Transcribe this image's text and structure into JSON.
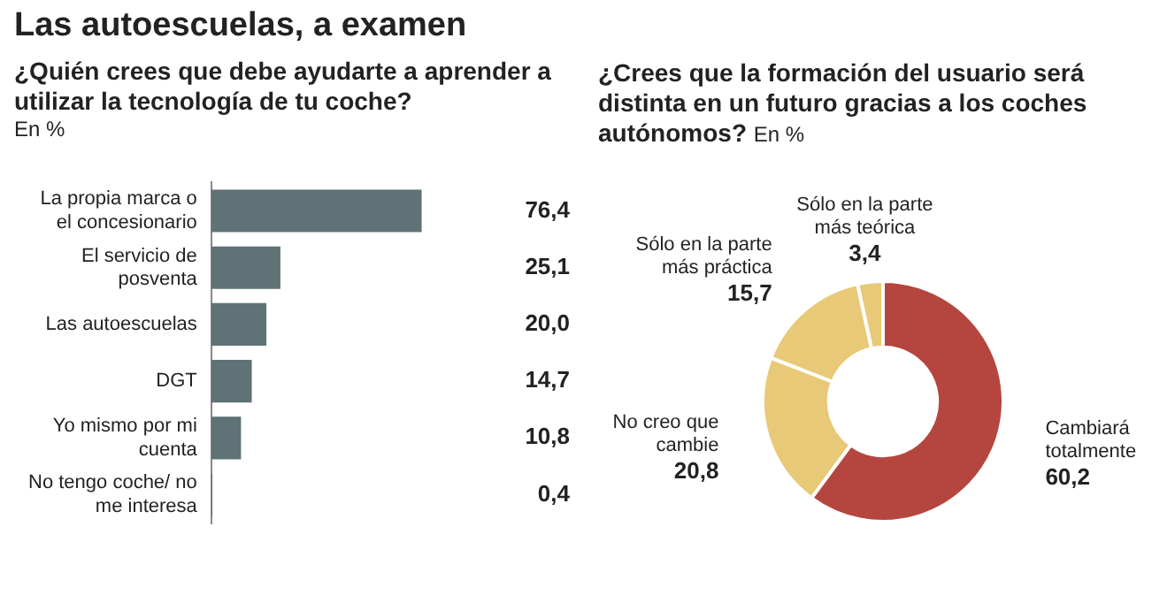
{
  "chart_data": [
    {
      "type": "bar",
      "orientation": "horizontal",
      "title": "Las autoescuelas, a examen",
      "subtitle": "¿Quién crees que debe ayudarte a aprender a utilizar la tecnología de tu coche?",
      "annotations": [
        "En %"
      ],
      "categories": [
        "La propia marca o el concesionario",
        "El servicio de posventa",
        "Las autoescuelas",
        "DGT",
        "Yo mismo por mi cuenta",
        "No tengo coche/ no me interesa"
      ],
      "values": [
        76.4,
        25.1,
        20.0,
        14.7,
        10.8,
        0.4
      ],
      "value_labels": [
        "76,4",
        "25,1",
        "20,0",
        "14,7",
        "10,8",
        "0,4"
      ],
      "color": "#5f7276"
    },
    {
      "type": "donut",
      "title": "¿Crees que la formación del usuario será distinta en un futuro gracias a los coches autónomos?",
      "annotations": [
        "En %"
      ],
      "categories": [
        "Cambiará totalmente",
        "No creo que cambie",
        "Sólo en la parte más práctica",
        "Sólo en la parte más teórica"
      ],
      "values": [
        60.2,
        20.8,
        15.7,
        3.4
      ],
      "value_labels": [
        "60,2",
        "20,8",
        "15,7",
        "3,4"
      ],
      "colors": [
        "#b5463f",
        "#e8c977",
        "#e8c977",
        "#e8c977"
      ]
    }
  ]
}
